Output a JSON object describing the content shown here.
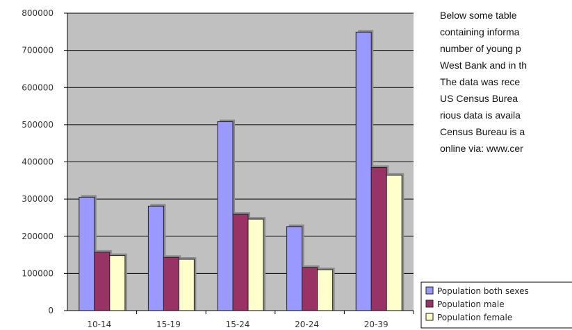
{
  "side_text": {
    "lines": [
      "Below some table",
      "containing informa",
      "number of young p",
      "West Bank and in th",
      "The data was rece",
      "US Census Burea",
      "rious data is availa",
      "Census Bureau is a",
      "online via: www.cer"
    ]
  },
  "chart_data": {
    "type": "bar",
    "categories": [
      "10-14",
      "15-19",
      "15-24",
      "20-24",
      "20-39"
    ],
    "series": [
      {
        "name": "Population both sexes",
        "color": "#9999ff",
        "values": [
          305000,
          281000,
          508000,
          226000,
          749000
        ]
      },
      {
        "name": "Population male",
        "color": "#993366",
        "values": [
          157000,
          143000,
          259000,
          116000,
          385000
        ]
      },
      {
        "name": "Population female",
        "color": "#ffffcc",
        "values": [
          148000,
          138000,
          246000,
          110000,
          364000
        ]
      }
    ],
    "ylim": [
      0,
      800000
    ],
    "yticks": [
      "0",
      "100000",
      "200000",
      "300000",
      "400000",
      "500000",
      "600000",
      "700000",
      "800000"
    ],
    "grid": true,
    "plot_background": "#c0c0c0",
    "legend_position": "bottom-right"
  }
}
